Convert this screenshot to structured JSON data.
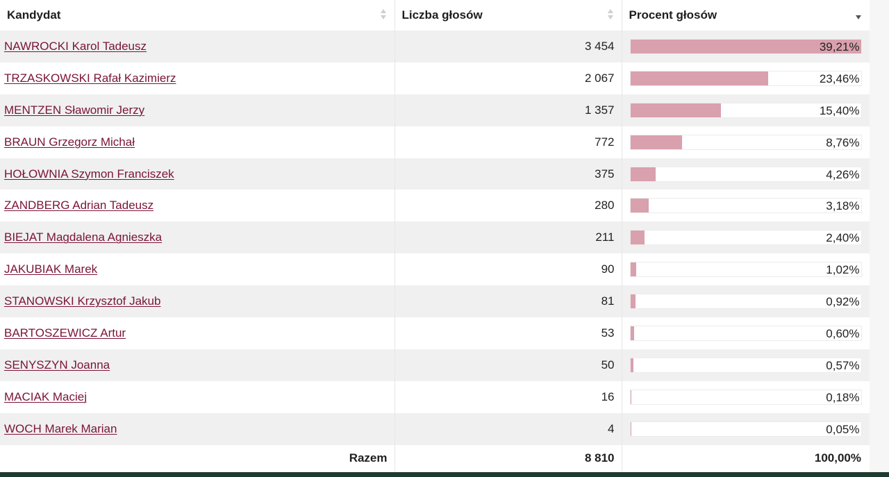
{
  "table": {
    "headers": {
      "candidate": "Kandydat",
      "votes": "Liczba głosów",
      "percent": "Procent głosów"
    },
    "sort": {
      "active_column": "percent",
      "direction": "descending"
    },
    "rows": [
      {
        "name": "NAWROCKI Karol Tadeusz",
        "votes": "3 454",
        "percent": "39,21%",
        "share": 0.3921
      },
      {
        "name": "TRZASKOWSKI Rafał Kazimierz",
        "votes": "2 067",
        "percent": "23,46%",
        "share": 0.2346
      },
      {
        "name": "MENTZEN Sławomir Jerzy",
        "votes": "1 357",
        "percent": "15,40%",
        "share": 0.154
      },
      {
        "name": "BRAUN Grzegorz Michał",
        "votes": "772",
        "percent": "8,76%",
        "share": 0.0876
      },
      {
        "name": "HOŁOWNIA Szymon Franciszek",
        "votes": "375",
        "percent": "4,26%",
        "share": 0.0426
      },
      {
        "name": "ZANDBERG Adrian Tadeusz",
        "votes": "280",
        "percent": "3,18%",
        "share": 0.0318
      },
      {
        "name": "BIEJAT Magdalena Agnieszka",
        "votes": "211",
        "percent": "2,40%",
        "share": 0.024
      },
      {
        "name": "JAKUBIAK Marek",
        "votes": "90",
        "percent": "1,02%",
        "share": 0.0102
      },
      {
        "name": "STANOWSKI Krzysztof Jakub",
        "votes": "81",
        "percent": "0,92%",
        "share": 0.0092
      },
      {
        "name": "BARTOSZEWICZ Artur",
        "votes": "53",
        "percent": "0,60%",
        "share": 0.006
      },
      {
        "name": "SENYSZYN Joanna",
        "votes": "50",
        "percent": "0,57%",
        "share": 0.0057
      },
      {
        "name": "MACIAK Maciej",
        "votes": "16",
        "percent": "0,18%",
        "share": 0.0018
      },
      {
        "name": "WOCH Marek Marian",
        "votes": "4",
        "percent": "0,05%",
        "share": 0.0005
      }
    ],
    "footer": {
      "label": "Razem",
      "votes": "8 810",
      "percent": "100,00%"
    }
  },
  "colors": {
    "link": "#7a1436",
    "bar": "#d9a0ad",
    "row_alt": "#f0f0f0",
    "bottom_bar": "#1f3b30"
  },
  "icons": {
    "sort_neutral": "sort-both-icon",
    "sort_active": "sort-descending-icon"
  }
}
